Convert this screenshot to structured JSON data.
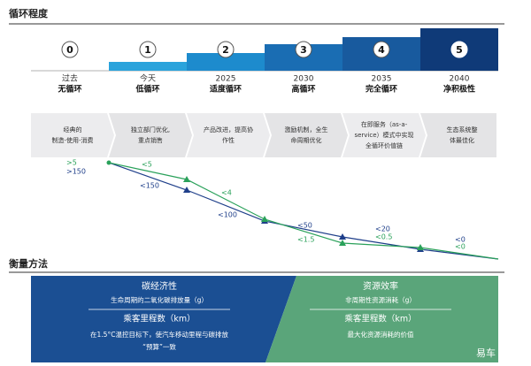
{
  "header": {
    "title": "循环程度"
  },
  "levels": [
    {
      "number": "0",
      "year": "过去",
      "name": "无循环",
      "description": [
        "经典的",
        "制造-使用-消费"
      ]
    },
    {
      "number": "1",
      "year": "今天",
      "name": "低循环",
      "description": [
        "独立部门优化,",
        "重点销售"
      ]
    },
    {
      "number": "2",
      "year": "2025",
      "name": "适度循环",
      "description": [
        "产品改进，提高协",
        "作性"
      ]
    },
    {
      "number": "3",
      "year": "2030",
      "name": "高循环",
      "description": [
        "激励机制，全生",
        "命周期优化"
      ]
    },
    {
      "number": "4",
      "year": "2035",
      "name": "完全循环",
      "description": [
        "在即服务（as-a-",
        "service）模式中实现",
        "全循环价值链"
      ]
    },
    {
      "number": "5",
      "year": "2040",
      "name": "净积极性",
      "description": [
        "生态系统整",
        "体最佳化"
      ]
    }
  ],
  "line_labels": [
    ">5",
    ">150",
    "<5",
    "<150",
    "<4",
    "<100",
    "<50",
    "<1.5",
    "<20",
    "<0.5",
    "<0",
    "<0"
  ],
  "section": {
    "title": "衡量方法"
  },
  "panels": [
    {
      "title": "碳经济性",
      "numerator": "生命周期的二氧化碳排放量（g）",
      "denominator": "乘客里程数（km）",
      "note": [
        "在1.5°C温控目标下，使汽车移动里程与碳排放",
        "“预算”一致"
      ]
    },
    {
      "title": "资源效率",
      "numerator": "非周期性资源消耗（g）",
      "denominator": "乘客里程数（km）",
      "note": [
        "最大化资源消耗的价值"
      ]
    }
  ],
  "watermark": "易车"
}
